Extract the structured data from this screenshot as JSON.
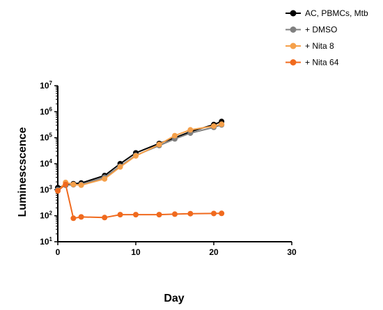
{
  "chart_data": {
    "type": "line",
    "xlabel": "Day",
    "ylabel": "Luminescscence",
    "xlim": [
      0,
      30
    ],
    "ylim_log10": [
      1,
      7
    ],
    "yscale": "log",
    "x_ticks": [
      0,
      10,
      20,
      30
    ],
    "y_tick_exponents": [
      1,
      2,
      3,
      4,
      5,
      6,
      7
    ],
    "grid": false,
    "legend_position": "top-right",
    "series": [
      {
        "name": "AC, PBMCs, Mtb",
        "color": "#000000",
        "x": [
          0,
          1,
          2,
          3,
          6,
          8,
          10,
          13,
          15,
          17,
          20,
          21
        ],
        "y": [
          1200,
          1500,
          1700,
          1800,
          3500,
          10000,
          26000,
          60000,
          100000,
          170000,
          320000,
          420000
        ]
      },
      {
        "name": "+ DMSO",
        "color": "#808080",
        "x": [
          0,
          1,
          2,
          3,
          6,
          8,
          10,
          13,
          15,
          17,
          20,
          21
        ],
        "y": [
          1000,
          1500,
          1550,
          1600,
          3000,
          8000,
          21000,
          50000,
          90000,
          150000,
          250000,
          310000
        ]
      },
      {
        "name": "+ Nita 8",
        "color": "#F5A04A",
        "x": [
          0,
          1,
          2,
          3,
          6,
          8,
          10,
          13,
          15,
          17,
          20,
          21
        ],
        "y": [
          900,
          1900,
          1600,
          1500,
          2600,
          7500,
          20000,
          55000,
          120000,
          200000,
          280000,
          330000
        ]
      },
      {
        "name": "+ Nita 64",
        "color": "#F06A1E",
        "x": [
          0,
          1,
          2,
          3,
          6,
          8,
          10,
          13,
          15,
          17,
          20,
          21
        ],
        "y": [
          900,
          1600,
          80,
          90,
          85,
          110,
          110,
          110,
          115,
          120,
          122,
          123
        ]
      }
    ]
  }
}
